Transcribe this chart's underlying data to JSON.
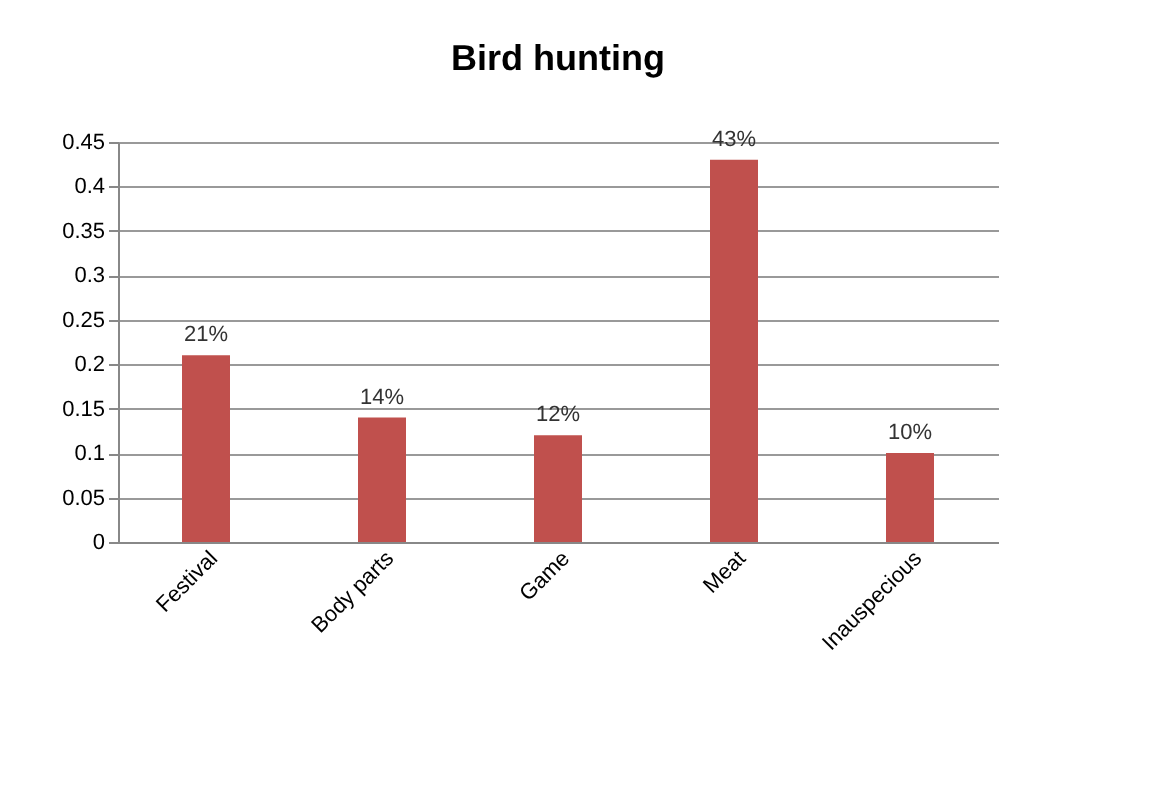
{
  "chart_data": {
    "type": "bar",
    "title": "Bird hunting",
    "categories": [
      "Festival",
      "Body parts",
      "Game",
      "Meat",
      "Inauspecious"
    ],
    "values": [
      0.21,
      0.14,
      0.12,
      0.43,
      0.1
    ],
    "value_labels": [
      "21%",
      "14%",
      "12%",
      "43%",
      "10%"
    ],
    "color": "#c0504d",
    "ylim": [
      0,
      0.45
    ],
    "yticks": [
      0,
      0.05,
      0.1,
      0.15,
      0.2,
      0.25,
      0.3,
      0.35,
      0.4,
      0.45
    ],
    "grid": "y"
  }
}
